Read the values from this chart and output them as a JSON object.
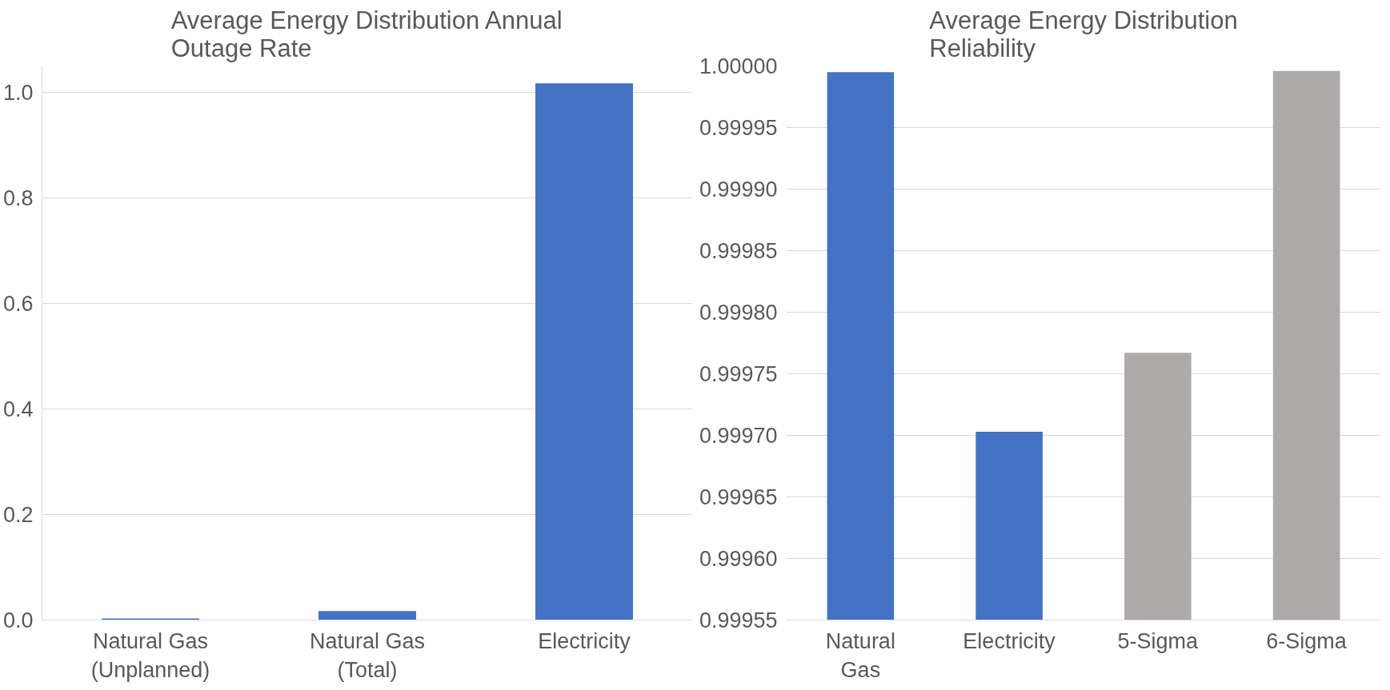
{
  "chart_data": [
    {
      "type": "bar",
      "title": "Average Energy Distribution Annual Outage Rate",
      "categories": [
        "Natural Gas (Unplanned)",
        "Natural Gas (Total)",
        "Electricity"
      ],
      "colors": [
        "#4472c4",
        "#4472c4",
        "#4472c4"
      ],
      "values": [
        0.003,
        0.017,
        1.017
      ],
      "ylim": [
        0,
        1.05
      ],
      "yticks": [
        {
          "value": 0,
          "label": "0.0"
        },
        0.2,
        0.4,
        0.6,
        0.8,
        {
          "value": 1,
          "label": "1.0"
        }
      ],
      "grid": "y"
    },
    {
      "type": "bar",
      "title": "Average Energy Distribution Reliability",
      "categories": [
        "Natural Gas",
        "Electricity",
        "5-Sigma",
        "6-Sigma"
      ],
      "colors": [
        "#4472c4",
        "#4472c4",
        "#adaaa9",
        "#adaaa9"
      ],
      "values": [
        0.999995,
        0.999703,
        0.999767,
        0.999996
      ],
      "ylim": [
        0.99955,
        1.0
      ],
      "yticks": [
        {
          "value": 0.99955,
          "label": "0.99955"
        },
        {
          "value": 0.9996,
          "label": "0.99960"
        },
        {
          "value": 0.99965,
          "label": "0.99965"
        },
        {
          "value": 0.9997,
          "label": "0.99970"
        },
        {
          "value": 0.99975,
          "label": "0.99975"
        },
        {
          "value": 0.9998,
          "label": "0.99980"
        },
        {
          "value": 0.99985,
          "label": "0.99985"
        },
        {
          "value": 0.9999,
          "label": "0.99990"
        },
        {
          "value": 0.99995,
          "label": "0.99995"
        },
        {
          "value": 1.0,
          "label": "1.00000"
        }
      ],
      "grid": "y"
    }
  ]
}
